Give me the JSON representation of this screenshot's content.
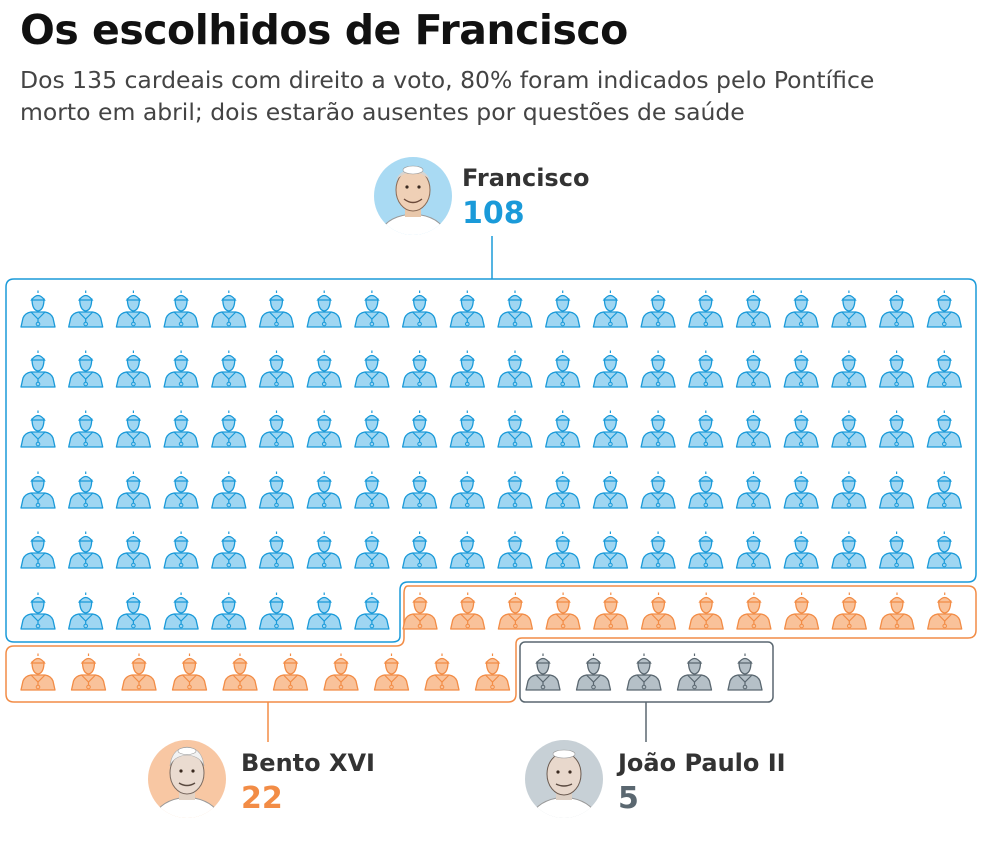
{
  "title": "Os escolhidos de Francisco",
  "subtitle_lines": [
    "Dos 135 cardeais com direito a voto, 80% foram indicados pelo Pontífice",
    "morto em abril; dois estarão ausentes por questões de saúde"
  ],
  "groups": [
    {
      "name": "Francisco",
      "count": "108",
      "cardinals": 108,
      "color": "#1a9ad9",
      "fill": "#9fd6f2",
      "avatar_bg": "#a9daf3"
    },
    {
      "name": "Bento XVI",
      "count": "22",
      "cardinals": 22,
      "color": "#f28c46",
      "fill": "#f9c29a",
      "avatar_bg": "#f8c7a3"
    },
    {
      "name": "João Paulo II",
      "count": "5",
      "cardinals": 5,
      "color": "#5a6770",
      "fill": "#b5c0c7",
      "avatar_bg": "#c7d0d6"
    }
  ],
  "icon": "cardinal-bust-icon"
}
